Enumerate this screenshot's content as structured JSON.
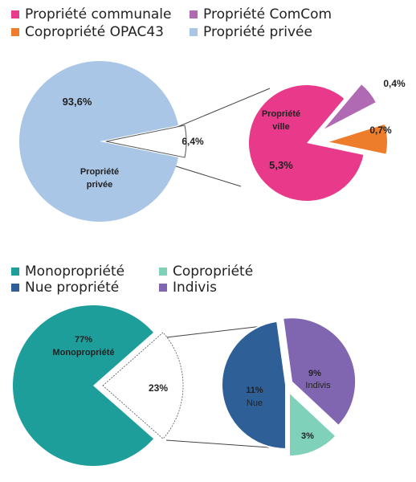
{
  "chart_data": [
    {
      "type": "pie",
      "title": "",
      "legend": {
        "placement": "top",
        "entries": [
          {
            "name": "Propriété communale",
            "color": "#e8398a"
          },
          {
            "name": "Propriété ComCom",
            "color": "#b06ab3"
          },
          {
            "name": "Copropriété OPAC43",
            "color": "#ee7d2b"
          },
          {
            "name": "Propriété privée",
            "color": "#a9c6e6"
          }
        ]
      },
      "main_pie": {
        "slices": [
          {
            "label_line1": "Propriété",
            "label_line2": "privée",
            "value": 93.6,
            "value_label": "93,6%",
            "color": "#a9c6e6"
          },
          {
            "label_line1": "",
            "label_line2": "",
            "value": 6.4,
            "value_label": "6,4%",
            "color": "#ffffff"
          }
        ]
      },
      "sub_pie": {
        "slices": [
          {
            "label_line1": "Propriété",
            "label_line2": "ville",
            "value": 5.3,
            "value_label": "5,3%",
            "color": "#e8398a"
          },
          {
            "label_line1": "",
            "label_line2": "",
            "value": 0.4,
            "value_label": "0,4%",
            "color": "#b06ab3"
          },
          {
            "label_line1": "",
            "label_line2": "",
            "value": 0.7,
            "value_label": "0,7%",
            "color": "#ee7d2b"
          }
        ]
      }
    },
    {
      "type": "pie",
      "title": "",
      "legend": {
        "placement": "top",
        "entries": [
          {
            "name": "Monopropriété",
            "color": "#1e9e9a"
          },
          {
            "name": "Copropriété",
            "color": "#7fd1b9"
          },
          {
            "name": "Nue propriété",
            "color": "#2e5f96"
          },
          {
            "name": "Indivis",
            "color": "#8066b0"
          }
        ]
      },
      "main_pie": {
        "slices": [
          {
            "label_line1": "77%",
            "label_line2": "Monopropriété",
            "value": 77,
            "value_label": "77%",
            "color": "#1e9e9a"
          },
          {
            "label_line1": "",
            "label_line2": "",
            "value": 23,
            "value_label": "23%",
            "color": "#ffffff"
          }
        ]
      },
      "sub_pie": {
        "slices": [
          {
            "label_line1": "11%",
            "label_line2": "Nue",
            "value": 11,
            "value_label": "11%",
            "color": "#2e5f96"
          },
          {
            "label_line1": "9%",
            "label_line2": "Indivis",
            "value": 9,
            "value_label": "9%",
            "color": "#8066b0"
          },
          {
            "label_line1": "",
            "label_line2": "",
            "value": 3,
            "value_label": "3%",
            "color": "#7fd1b9"
          }
        ]
      }
    }
  ]
}
